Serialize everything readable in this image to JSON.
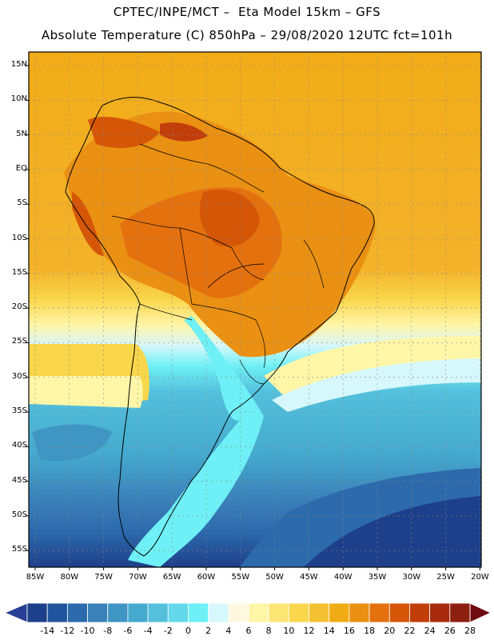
{
  "header": {
    "line1": "CPTEC/INPE/MCT –  Eta Model 15km – GFS",
    "line2": "Absolute Temperature (C) 850hPa – 29/08/2020 12UTC fct=101h"
  },
  "axes": {
    "latitudes": [
      "15N",
      "10N",
      "5N",
      "EQ",
      "5S",
      "10S",
      "15S",
      "20S",
      "25S",
      "30S",
      "35S",
      "40S",
      "45S",
      "50S",
      "55S"
    ],
    "longitudes": [
      "85W",
      "80W",
      "75W",
      "70W",
      "65W",
      "60W",
      "55W",
      "50W",
      "45W",
      "40W",
      "35W",
      "30W",
      "25W",
      "20W"
    ]
  },
  "colorbar": {
    "labels": [
      "-14",
      "-12",
      "-10",
      "-8",
      "-6",
      "-4",
      "-2",
      "0",
      "2",
      "4",
      "6",
      "8",
      "10",
      "12",
      "14",
      "16",
      "18",
      "20",
      "22",
      "24",
      "26",
      "28"
    ],
    "colors": [
      "#1e3f8a",
      "#21549c",
      "#2c6aac",
      "#3a80b9",
      "#3f95c3",
      "#45aace",
      "#54c0dc",
      "#62d8ea",
      "#6ef0f6",
      "#d6f7fb",
      "#fff8e0",
      "#fff6a8",
      "#fbe573",
      "#f9d64b",
      "#f3c131",
      "#f0ac14",
      "#ea9013",
      "#e4700e",
      "#d45606",
      "#c13e0a",
      "#a82a0c",
      "#8c1f0f"
    ],
    "under_color": "#293f95",
    "over_color": "#6e0a12"
  }
}
